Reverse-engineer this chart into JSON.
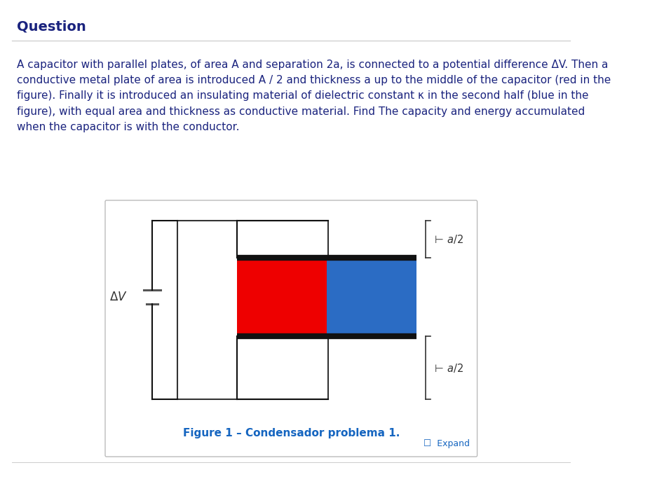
{
  "bg_color": "#ffffff",
  "title": "Question",
  "title_color": "#1a237e",
  "title_fontsize": 14,
  "body_text": "A capacitor with parallel plates, of area A and separation 2a, is connected to a potential difference ΔV. Then a\nconductive metal plate of area is introduced A / 2 and thickness a up to the middle of the capacitor (red in the\nfigure). Finally it is introduced an insulating material of dielectric constant κ in the second half (blue in the\nfigure), with equal area and thickness as conductive material. Find The capacity and energy accumulated\nwhen the capacitor is with the conductor.",
  "body_color": "#1a237e",
  "body_fontsize": 11.0,
  "figure_caption": "Figure 1 – Condensador problema 1.",
  "caption_color": "#1565c0",
  "caption_fontsize": 11,
  "expand_text": "☐  Expand",
  "expand_color": "#1565c0",
  "plate_color": "#111111",
  "red_color": "#ee0000",
  "blue_color": "#2b6cc4",
  "battery_color": "#555555",
  "wire_color": "#111111",
  "label_color": "#333333",
  "label_fontsize": 10.5,
  "divider_color": "#cccccc",
  "box_edge_color": "#bbbbbb"
}
